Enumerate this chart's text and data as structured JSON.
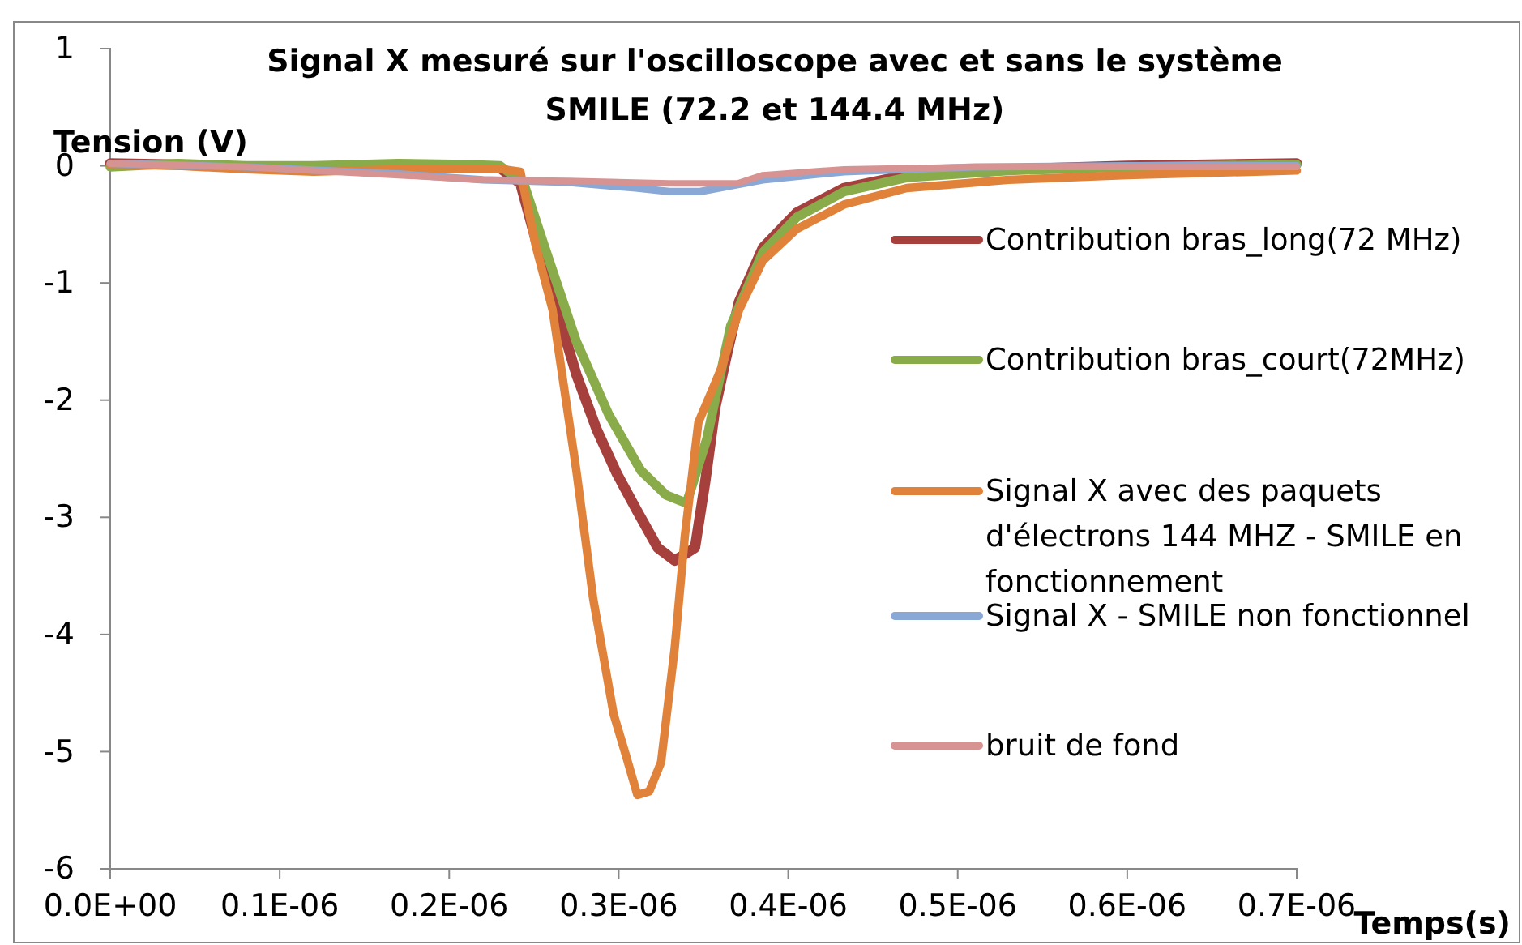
{
  "chart_data": {
    "type": "line",
    "title": "Signal X mesuré sur l'oscilloscope avec et sans le système SMILE (72.2 et 144.4 MHz)",
    "xlabel": "Temps(s)",
    "ylabel": "Tension (V)",
    "xlim": [
      0,
      7e-07
    ],
    "xticks": [
      {
        "value": 0,
        "label": "0.0E+00"
      },
      {
        "value": 1e-07,
        "label": "0.1E-06"
      },
      {
        "value": 2e-07,
        "label": "0.2E-06"
      },
      {
        "value": 3e-07,
        "label": "0.3E-06"
      },
      {
        "value": 4e-07,
        "label": "0.4E-06"
      },
      {
        "value": 5e-07,
        "label": "0.5E-06"
      },
      {
        "value": 6e-07,
        "label": "0.6E-06"
      },
      {
        "value": 7e-07,
        "label": "0.7E-06"
      }
    ],
    "ylim": [
      -6,
      1
    ],
    "yticks": [
      -6,
      -5,
      -4,
      -3,
      -2,
      -1,
      0,
      1
    ],
    "grid": false,
    "legend": "right",
    "marker": "none",
    "line_style": "solid",
    "series": [
      {
        "name": "Contribution bras_long(72 MHz)",
        "color": "#a5403d",
        "x": [
          0,
          4e-08,
          8e-08,
          1.2e-07,
          1.7e-07,
          2.1e-07,
          2.3e-07,
          2.42e-07,
          2.51e-07,
          2.63e-07,
          2.75e-07,
          2.87e-07,
          2.99e-07,
          3.11e-07,
          3.23e-07,
          3.33e-07,
          3.45e-07,
          3.51e-07,
          3.57e-07,
          3.64e-07,
          3.71e-07,
          3.85e-07,
          4.05e-07,
          4.33e-07,
          4.7e-07,
          5.3e-07,
          6e-07,
          7e-07
        ],
        "values": [
          0.02,
          0.01,
          -0.01,
          -0.03,
          0,
          0,
          -0.02,
          -0.15,
          -0.63,
          -1.2,
          -1.78,
          -2.25,
          -2.63,
          -2.95,
          -3.26,
          -3.37,
          -3.26,
          -2.7,
          -2.06,
          -1.6,
          -1.16,
          -0.7,
          -0.4,
          -0.19,
          -0.08,
          -0.03,
          0,
          0.02
        ]
      },
      {
        "name": "Contribution bras_court(72MHz)",
        "color": "#8aab4a",
        "x": [
          0,
          4e-08,
          8e-08,
          1.2e-07,
          1.7e-07,
          2.1e-07,
          2.3e-07,
          2.44e-07,
          2.56e-07,
          2.75e-07,
          2.94e-07,
          3.13e-07,
          3.28e-07,
          3.4e-07,
          3.52e-07,
          3.59e-07,
          3.66e-07,
          3.85e-07,
          4.05e-07,
          4.33e-07,
          4.7e-07,
          5.3e-07,
          6e-07,
          7e-07
        ],
        "values": [
          -0.01,
          0.02,
          0,
          0,
          0.02,
          0.01,
          0,
          -0.15,
          -0.68,
          -1.5,
          -2.12,
          -2.6,
          -2.81,
          -2.88,
          -2.33,
          -1.85,
          -1.37,
          -0.74,
          -0.44,
          -0.22,
          -0.1,
          -0.04,
          -0.01,
          0.01
        ]
      },
      {
        "name": "Signal X avec des paquets d'électrons 144 MHZ - SMILE en fonctionnement",
        "color": "#e0823a",
        "x": [
          0,
          4e-08,
          8e-08,
          1.2e-07,
          1.7e-07,
          2.1e-07,
          2.32e-07,
          2.42e-07,
          2.51e-07,
          2.61e-07,
          2.75e-07,
          2.85e-07,
          2.97e-07,
          3.04e-07,
          3.11e-07,
          3.18e-07,
          3.25e-07,
          3.33e-07,
          3.39e-07,
          3.47e-07,
          3.57e-07,
          3.61e-07,
          3.71e-07,
          3.85e-07,
          4.05e-07,
          4.33e-07,
          4.7e-07,
          5.3e-07,
          6e-07,
          7e-07
        ],
        "values": [
          0.01,
          0,
          -0.03,
          -0.05,
          -0.03,
          -0.03,
          -0.03,
          -0.05,
          -0.68,
          -1.23,
          -2.6,
          -3.7,
          -4.68,
          -5.02,
          -5.37,
          -5.34,
          -5.09,
          -4.12,
          -3.16,
          -2.19,
          -1.85,
          -1.71,
          -1.23,
          -0.81,
          -0.54,
          -0.33,
          -0.19,
          -0.12,
          -0.08,
          -0.04
        ]
      },
      {
        "name": "Signal X - SMILE non fonctionnel",
        "color": "#8aa8d6",
        "x": [
          0,
          8e-08,
          1.7e-07,
          2.2e-07,
          2.7e-07,
          3.1e-07,
          3.3e-07,
          3.48e-07,
          3.85e-07,
          4.33e-07,
          5.1e-07,
          6e-07,
          7e-07
        ],
        "values": [
          0.02,
          -0.01,
          -0.07,
          -0.12,
          -0.14,
          -0.19,
          -0.22,
          -0.22,
          -0.12,
          -0.05,
          -0.01,
          0,
          0
        ]
      },
      {
        "name": "bruit de fond",
        "color": "#d69392",
        "x": [
          0,
          8e-08,
          1.7e-07,
          2.2e-07,
          2.7e-07,
          3.3e-07,
          3.7e-07,
          3.85e-07,
          4.33e-07,
          5.1e-07,
          6e-07,
          7e-07
        ],
        "values": [
          0.02,
          -0.01,
          -0.08,
          -0.12,
          -0.13,
          -0.15,
          -0.15,
          -0.08,
          -0.03,
          -0.01,
          -0.01,
          -0.01
        ]
      }
    ]
  }
}
